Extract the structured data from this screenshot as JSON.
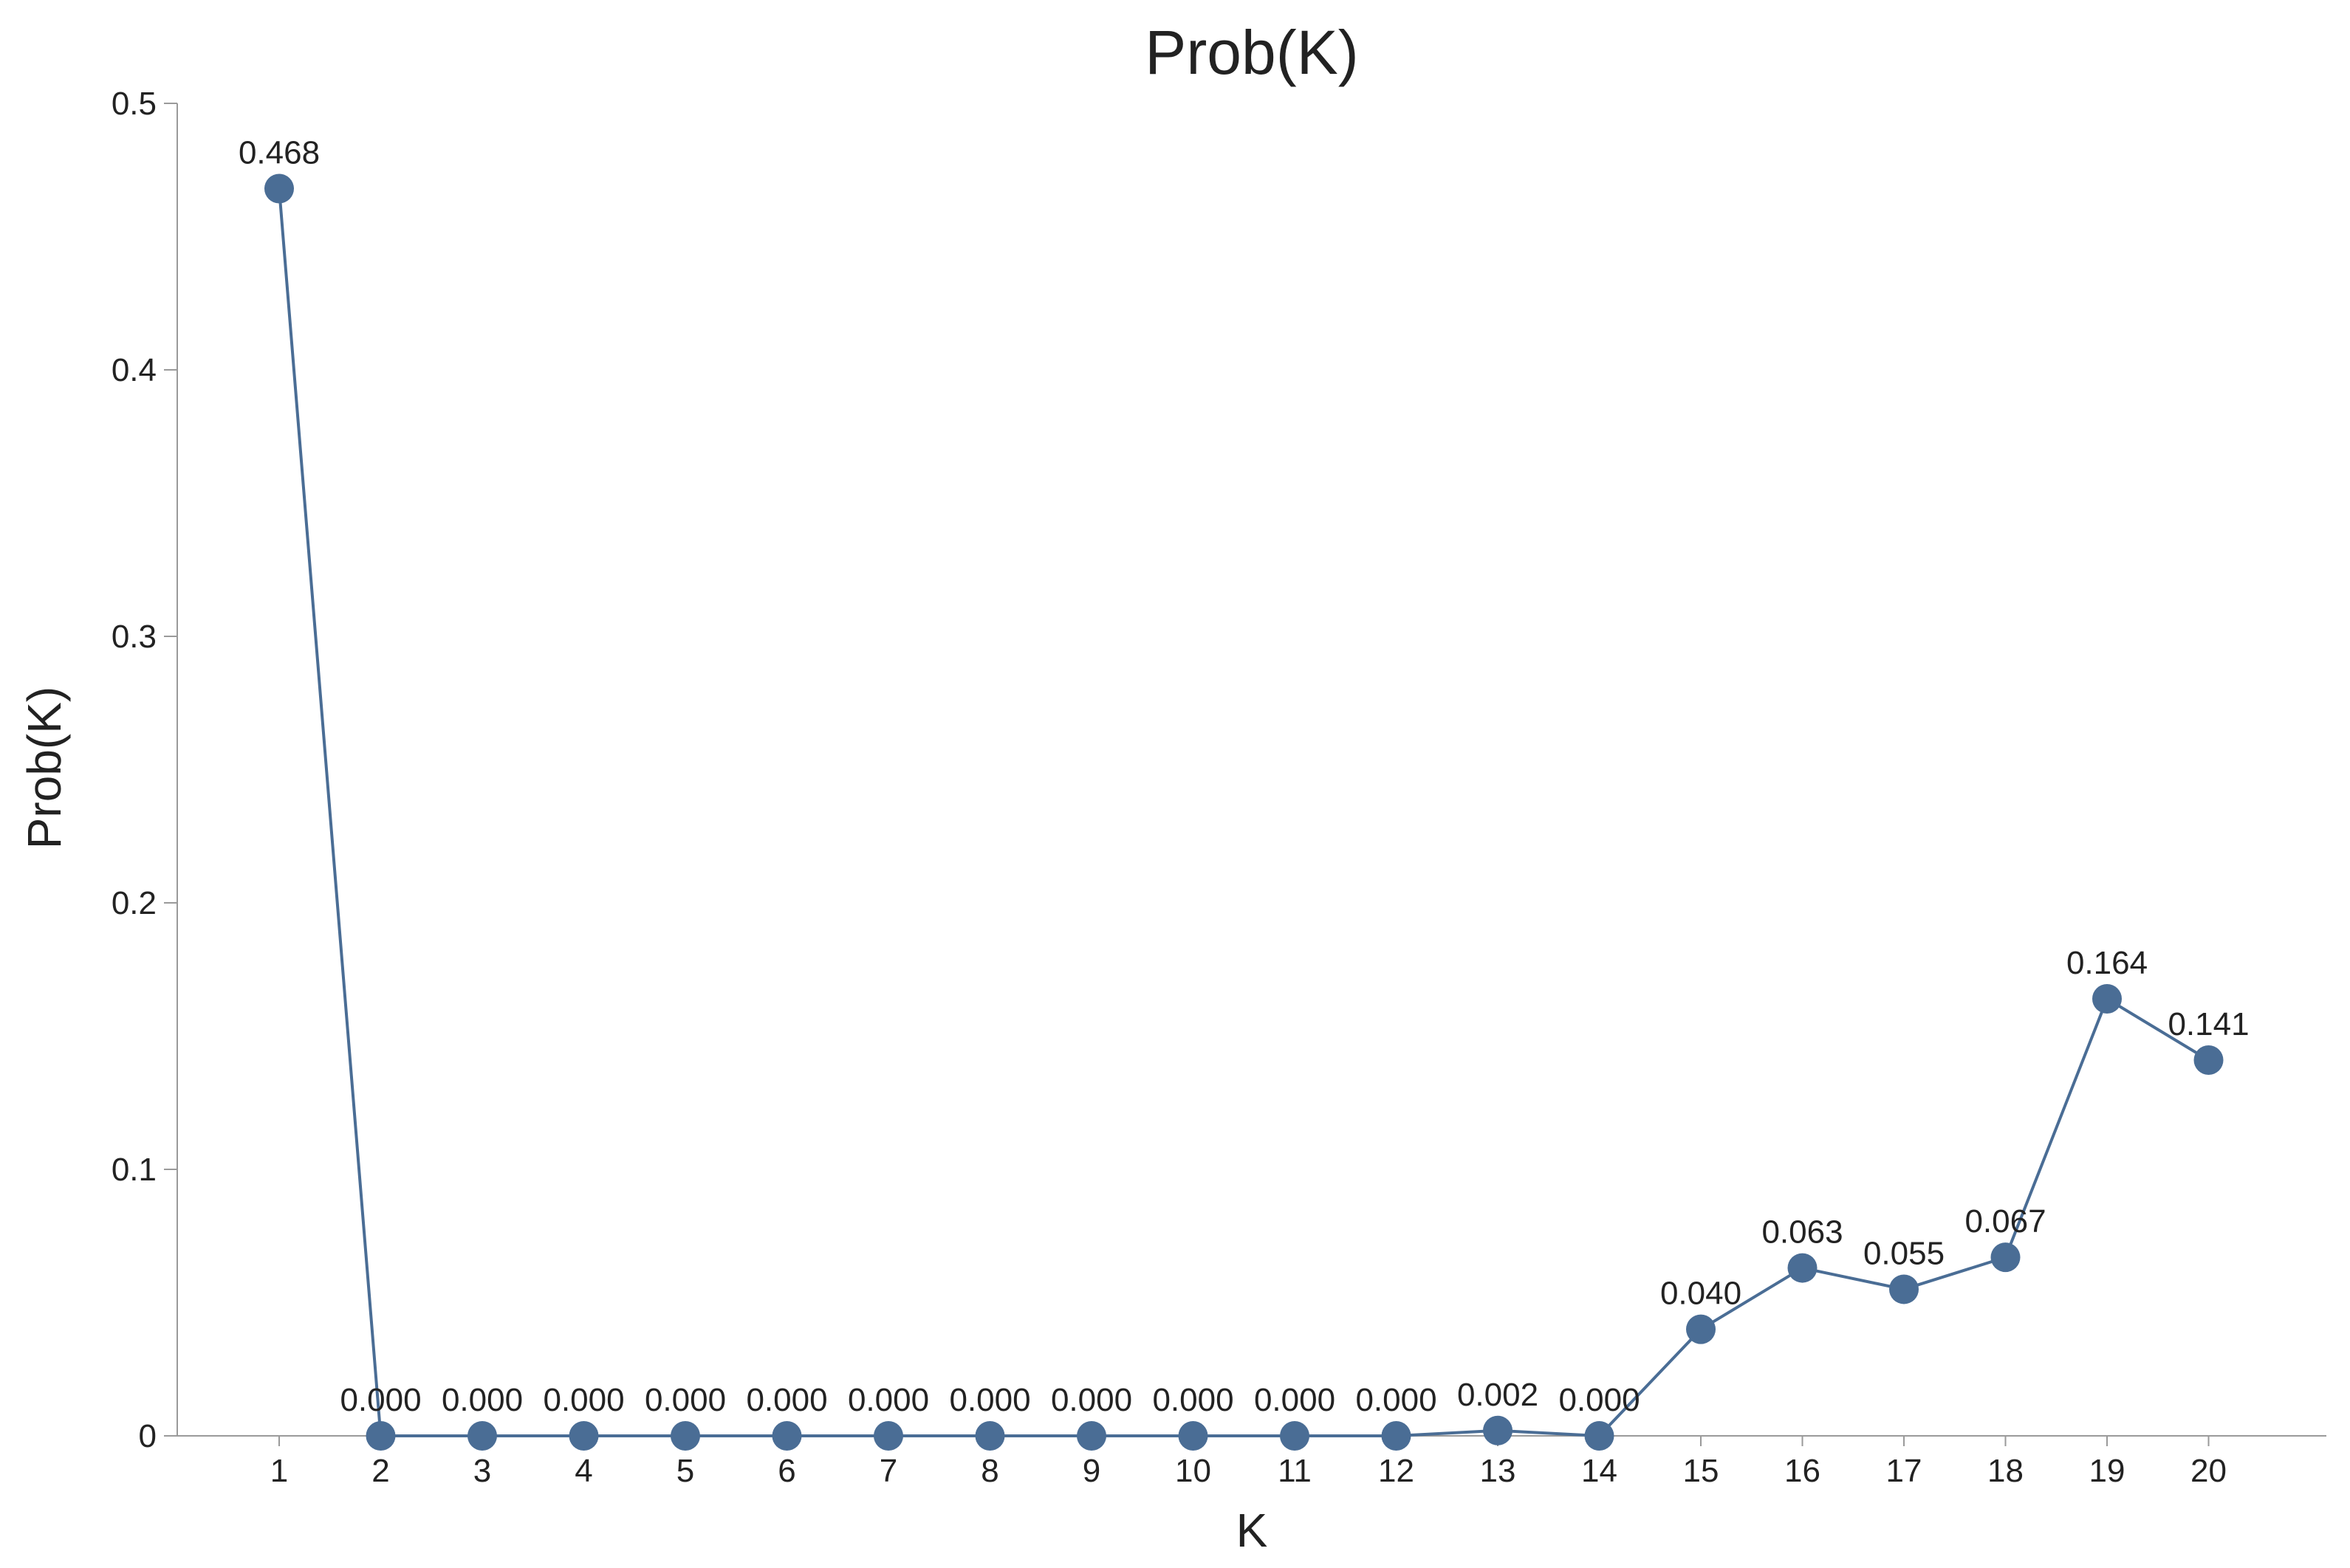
{
  "chart_data": {
    "type": "line",
    "title": "Prob(K)",
    "xlabel": "K",
    "ylabel": "Prob(K)",
    "ylim": [
      0,
      0.5
    ],
    "yticks": [
      "0",
      "0.1",
      "0.2",
      "0.3",
      "0.4",
      "0.5"
    ],
    "categories": [
      "1",
      "2",
      "3",
      "4",
      "5",
      "6",
      "7",
      "8",
      "9",
      "10",
      "11",
      "12",
      "13",
      "14",
      "15",
      "16",
      "17",
      "18",
      "19",
      "20"
    ],
    "values": [
      0.468,
      0.0,
      0.0,
      0.0,
      0.0,
      0.0,
      0.0,
      0.0,
      0.0,
      0.0,
      0.0,
      0.0,
      0.002,
      0.0,
      0.04,
      0.063,
      0.055,
      0.067,
      0.164,
      0.141
    ],
    "data_labels": [
      "0.468",
      "0.000",
      "0.000",
      "0.000",
      "0.000",
      "0.000",
      "0.000",
      "0.000",
      "0.000",
      "0.000",
      "0.000",
      "0.000",
      "0.002",
      "0.000",
      "0.040",
      "0.063",
      "0.055",
      "0.067",
      "0.164",
      "0.141"
    ],
    "grid": false,
    "legend": "none",
    "colors": {
      "series": "#4a6d95",
      "axis": "#9a9a9a"
    }
  }
}
